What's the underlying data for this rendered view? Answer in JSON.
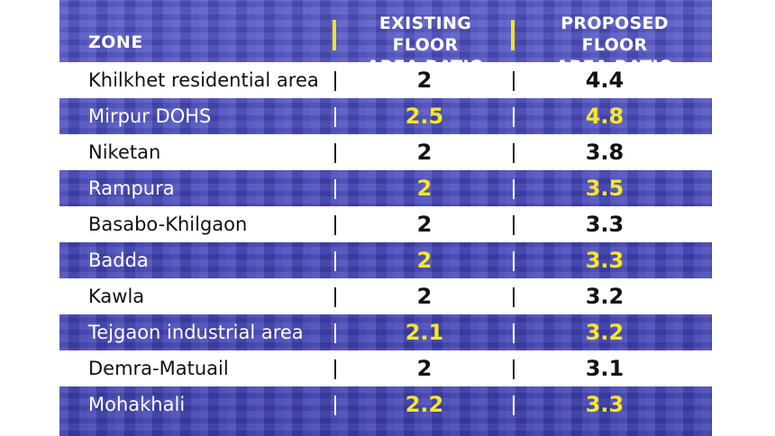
{
  "chart_data": {
    "type": "table",
    "columns": [
      "ZONE",
      "EXISTING FLOOR AREA RATIO",
      "PROPOSED FLOOR AREA RATIO"
    ],
    "header": {
      "zone": "ZONE",
      "existing": [
        "EXISTING FLOOR",
        "AREA RATIO"
      ],
      "proposed": [
        "PROPOSED FLOOR",
        "AREA RATIO"
      ]
    },
    "rows": [
      {
        "zone": "Khilkhet residential area",
        "existing": "2",
        "proposed": "4.4"
      },
      {
        "zone": "Mirpur DOHS",
        "existing": "2.5",
        "proposed": "4.8"
      },
      {
        "zone": "Niketan",
        "existing": "2",
        "proposed": "3.8"
      },
      {
        "zone": "Rampura",
        "existing": "2",
        "proposed": "3.5"
      },
      {
        "zone": "Basabo-Khilgaon",
        "existing": "2",
        "proposed": "3.3"
      },
      {
        "zone": "Badda",
        "existing": "2",
        "proposed": "3.3"
      },
      {
        "zone": "Kawla",
        "existing": "2",
        "proposed": "3.2"
      },
      {
        "zone": "Tejgaon industrial area",
        "existing": "2.1",
        "proposed": "3.2"
      },
      {
        "zone": "Demra-Matuail",
        "existing": "2",
        "proposed": "3.1"
      },
      {
        "zone": "Mohakhali",
        "existing": "2.2",
        "proposed": "3.3"
      }
    ]
  },
  "colors": {
    "background": "#4a4cc0",
    "highlight_text": "#f7e824",
    "white_row": "#ffffff",
    "header_divider": "#f4e21c"
  }
}
